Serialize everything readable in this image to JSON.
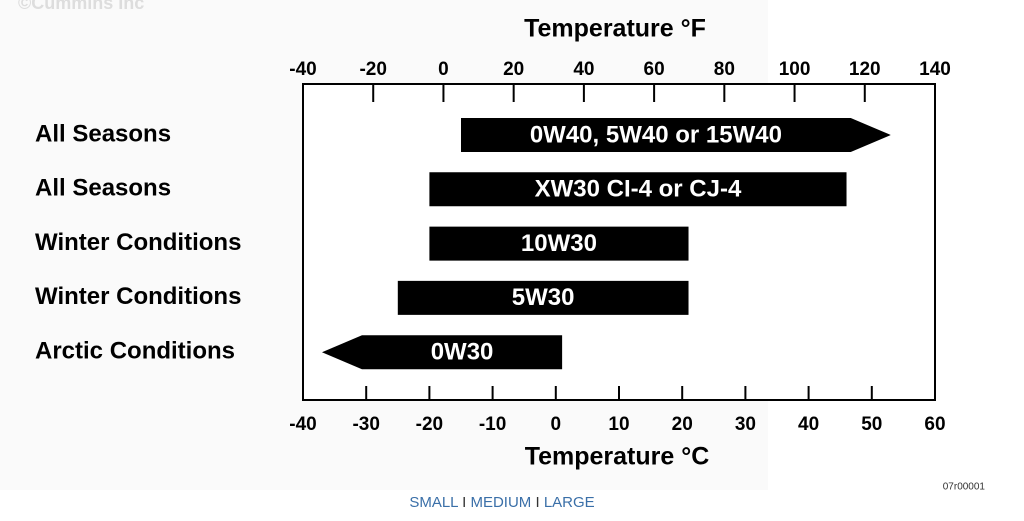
{
  "watermark": "©Cummins Inc",
  "footer_code": "07r00001",
  "size_links": [
    "SMALL",
    "MEDIUM",
    "LARGE"
  ],
  "separator": "I",
  "chart_data": {
    "type": "range_bar",
    "x_label": "Temperature °C",
    "x2_label": "Temperature °F",
    "categories": [
      "All Seasons",
      "All Seasons",
      "Winter Conditions",
      "Winter Conditions",
      "Arctic Conditions"
    ],
    "bar_labels": [
      "0W40, 5W40 or 15W40",
      "XW30 CI-4 or CJ-4",
      "10W30",
      "5W30",
      "0W30"
    ],
    "start": [
      -15,
      -20,
      -20,
      -25,
      -37
    ],
    "end": [
      53,
      46,
      21,
      21,
      1
    ],
    "arrows": [
      "right",
      null,
      null,
      null,
      "left"
    ],
    "color": "#000000",
    "xlim": [
      -40,
      60
    ],
    "xticks": [
      -40,
      -30,
      -20,
      -10,
      0,
      10,
      20,
      30,
      40,
      50,
      60
    ],
    "x2lim": [
      -40,
      140
    ],
    "x2ticks": [
      -40,
      -20,
      0,
      20,
      40,
      60,
      80,
      100,
      120,
      140
    ]
  }
}
